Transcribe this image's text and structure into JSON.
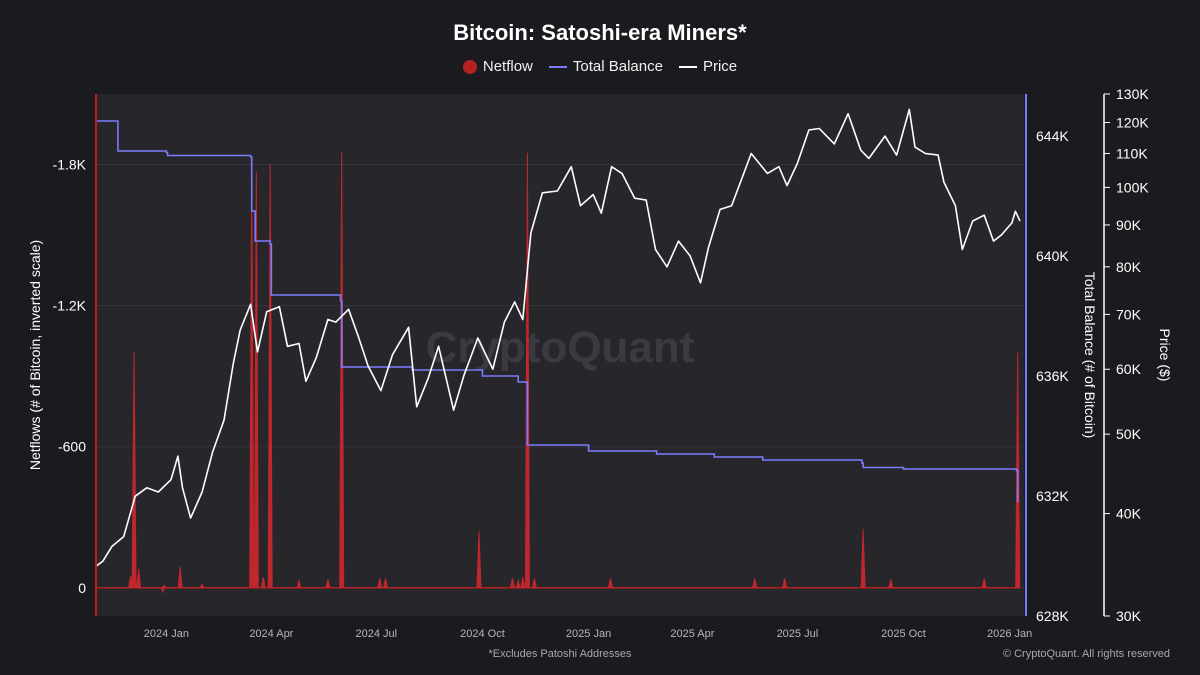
{
  "chart_data": {
    "type": "line",
    "title": "Bitcoin: Satoshi-era Miners*",
    "legend": [
      {
        "name": "Netflow",
        "color": "#b22222",
        "marker": "circle"
      },
      {
        "name": "Total Balance",
        "color": "#7b7bff",
        "marker": "line"
      },
      {
        "name": "Price",
        "color": "#ffffff",
        "marker": "line"
      }
    ],
    "watermark": "CryptoQuant",
    "footnote": "*Excludes Patoshi Addresses",
    "copyright": "© CryptoQuant. All rights reserved",
    "x_axis": {
      "type": "date",
      "range": [
        "2023-11-01",
        "2026-01-10"
      ],
      "ticks": [
        {
          "date": "2024-01-01",
          "label": "2024 Jan"
        },
        {
          "date": "2024-04-01",
          "label": "2024 Apr"
        },
        {
          "date": "2024-07-01",
          "label": "2024 Jul"
        },
        {
          "date": "2024-10-01",
          "label": "2024 Oct"
        },
        {
          "date": "2025-01-01",
          "label": "2025 Jan"
        },
        {
          "date": "2025-04-01",
          "label": "2025 Apr"
        },
        {
          "date": "2025-07-01",
          "label": "2025 Jul"
        },
        {
          "date": "2025-10-01",
          "label": "2025 Oct"
        },
        {
          "date": "2026-01-01",
          "label": "2026 Jan"
        }
      ]
    },
    "y_left": {
      "label": "Netflows (# of Bitcoin, inverted scale)",
      "inverted": true,
      "range": [
        -2100,
        120
      ],
      "ticks": [
        {
          "value": 0,
          "label": "0"
        },
        {
          "value": -600,
          "label": "-600"
        },
        {
          "value": -1200,
          "label": "-1.2K"
        },
        {
          "value": -1800,
          "label": "-1.8K"
        }
      ]
    },
    "y_right1": {
      "label": "Total Balance (# of Bitcoin)",
      "range": [
        628000,
        645400
      ],
      "ticks": [
        {
          "value": 628000,
          "label": "628K"
        },
        {
          "value": 632000,
          "label": "632K"
        },
        {
          "value": 636000,
          "label": "636K"
        },
        {
          "value": 640000,
          "label": "640K"
        },
        {
          "value": 644000,
          "label": "644K"
        }
      ]
    },
    "y_right2": {
      "label": "Price ($)",
      "scale": "log",
      "range": [
        30000,
        130000
      ],
      "ticks": [
        {
          "value": 30000,
          "label": "30K"
        },
        {
          "value": 40000,
          "label": "40K"
        },
        {
          "value": 50000,
          "label": "50K"
        },
        {
          "value": 60000,
          "label": "60K"
        },
        {
          "value": 70000,
          "label": "70K"
        },
        {
          "value": 80000,
          "label": "80K"
        },
        {
          "value": 90000,
          "label": "90K"
        },
        {
          "value": 100000,
          "label": "100K"
        },
        {
          "value": 110000,
          "label": "110K"
        },
        {
          "value": 120000,
          "label": "120K"
        },
        {
          "value": 130000,
          "label": "130K"
        }
      ]
    },
    "series": [
      {
        "name": "Netflow",
        "points": [
          [
            "2023-12-01",
            -50
          ],
          [
            "2023-12-04",
            -1000
          ],
          [
            "2023-12-08",
            -80
          ],
          [
            "2023-12-30",
            -10
          ],
          [
            "2024-01-13",
            -90
          ],
          [
            "2024-02-01",
            -15
          ],
          [
            "2024-03-15",
            -1800
          ],
          [
            "2024-03-19",
            -1770
          ],
          [
            "2024-03-25",
            -45
          ],
          [
            "2024-03-31",
            -1800
          ],
          [
            "2024-04-25",
            -30
          ],
          [
            "2024-05-20",
            -35
          ],
          [
            "2024-06-01",
            -1850
          ],
          [
            "2024-07-04",
            -40
          ],
          [
            "2024-07-09",
            -40
          ],
          [
            "2024-09-28",
            -240
          ],
          [
            "2024-10-27",
            -40
          ],
          [
            "2024-11-01",
            -30
          ],
          [
            "2024-11-05",
            -45
          ],
          [
            "2024-11-09",
            -1850
          ],
          [
            "2024-11-15",
            -40
          ],
          [
            "2025-01-20",
            -40
          ],
          [
            "2025-05-25",
            -40
          ],
          [
            "2025-06-20",
            -40
          ],
          [
            "2025-08-27",
            -250
          ],
          [
            "2025-09-20",
            -35
          ],
          [
            "2025-12-10",
            -40
          ],
          [
            "2026-01-08",
            -1000
          ]
        ],
        "negative_dips": [
          [
            "2023-12-29",
            25
          ]
        ]
      },
      {
        "name": "Total Balance",
        "points": [
          [
            "2023-11-01",
            644500
          ],
          [
            "2023-11-18",
            644500
          ],
          [
            "2023-11-20",
            643500
          ],
          [
            "2024-01-01",
            643450
          ],
          [
            "2024-01-02",
            643350
          ],
          [
            "2024-03-14",
            643300
          ],
          [
            "2024-03-15",
            641500
          ],
          [
            "2024-03-18",
            640500
          ],
          [
            "2024-03-31",
            640400
          ],
          [
            "2024-04-01",
            638700
          ],
          [
            "2024-05-31",
            638500
          ],
          [
            "2024-06-01",
            636300
          ],
          [
            "2024-08-01",
            636200
          ],
          [
            "2024-10-01",
            636000
          ],
          [
            "2024-11-01",
            635800
          ],
          [
            "2024-11-09",
            633700
          ],
          [
            "2025-01-01",
            633500
          ],
          [
            "2025-03-01",
            633400
          ],
          [
            "2025-04-20",
            633300
          ],
          [
            "2025-06-01",
            633200
          ],
          [
            "2025-08-26",
            633100
          ],
          [
            "2025-08-27",
            632950
          ],
          [
            "2025-10-01",
            632900
          ],
          [
            "2025-12-01",
            632900
          ],
          [
            "2026-01-07",
            632850
          ],
          [
            "2026-01-08",
            631800
          ]
        ]
      },
      {
        "name": "Price",
        "points": [
          [
            "2023-11-01",
            34500
          ],
          [
            "2023-11-07",
            35000
          ],
          [
            "2023-11-15",
            36500
          ],
          [
            "2023-11-25",
            37500
          ],
          [
            "2023-12-05",
            42000
          ],
          [
            "2023-12-15",
            43000
          ],
          [
            "2023-12-25",
            42500
          ],
          [
            "2024-01-05",
            44000
          ],
          [
            "2024-01-11",
            47000
          ],
          [
            "2024-01-15",
            43000
          ],
          [
            "2024-01-22",
            39500
          ],
          [
            "2024-02-01",
            42500
          ],
          [
            "2024-02-10",
            47500
          ],
          [
            "2024-02-20",
            52000
          ],
          [
            "2024-02-28",
            61000
          ],
          [
            "2024-03-05",
            67000
          ],
          [
            "2024-03-14",
            72000
          ],
          [
            "2024-03-20",
            63000
          ],
          [
            "2024-03-28",
            70500
          ],
          [
            "2024-04-08",
            71500
          ],
          [
            "2024-04-15",
            64000
          ],
          [
            "2024-04-25",
            64500
          ],
          [
            "2024-05-01",
            58000
          ],
          [
            "2024-05-10",
            62000
          ],
          [
            "2024-05-20",
            69000
          ],
          [
            "2024-05-27",
            68500
          ],
          [
            "2024-06-07",
            71000
          ],
          [
            "2024-06-15",
            66000
          ],
          [
            "2024-06-24",
            60500
          ],
          [
            "2024-07-05",
            56500
          ],
          [
            "2024-07-15",
            62500
          ],
          [
            "2024-07-29",
            67500
          ],
          [
            "2024-08-05",
            54000
          ],
          [
            "2024-08-15",
            58500
          ],
          [
            "2024-08-24",
            64000
          ],
          [
            "2024-09-06",
            53500
          ],
          [
            "2024-09-15",
            59000
          ],
          [
            "2024-09-27",
            65500
          ],
          [
            "2024-10-10",
            60000
          ],
          [
            "2024-10-20",
            68500
          ],
          [
            "2024-10-29",
            72500
          ],
          [
            "2024-11-05",
            69000
          ],
          [
            "2024-11-12",
            88000
          ],
          [
            "2024-11-22",
            98500
          ],
          [
            "2024-12-05",
            99000
          ],
          [
            "2024-12-17",
            106000
          ],
          [
            "2024-12-25",
            95000
          ],
          [
            "2025-01-05",
            98000
          ],
          [
            "2025-01-12",
            93000
          ],
          [
            "2025-01-21",
            106000
          ],
          [
            "2025-01-30",
            104000
          ],
          [
            "2025-02-10",
            97000
          ],
          [
            "2025-02-20",
            96500
          ],
          [
            "2025-02-28",
            84000
          ],
          [
            "2025-03-10",
            80000
          ],
          [
            "2025-03-20",
            86000
          ],
          [
            "2025-03-30",
            82500
          ],
          [
            "2025-04-08",
            76500
          ],
          [
            "2025-04-15",
            84500
          ],
          [
            "2025-04-25",
            94000
          ],
          [
            "2025-05-05",
            95000
          ],
          [
            "2025-05-15",
            103500
          ],
          [
            "2025-05-22",
            110000
          ],
          [
            "2025-06-05",
            104000
          ],
          [
            "2025-06-15",
            106000
          ],
          [
            "2025-06-22",
            100500
          ],
          [
            "2025-07-01",
            107000
          ],
          [
            "2025-07-11",
            117500
          ],
          [
            "2025-07-20",
            118000
          ],
          [
            "2025-08-02",
            113000
          ],
          [
            "2025-08-14",
            123000
          ],
          [
            "2025-08-25",
            111000
          ],
          [
            "2025-09-01",
            108500
          ],
          [
            "2025-09-15",
            115500
          ],
          [
            "2025-09-25",
            109500
          ],
          [
            "2025-10-06",
            124500
          ],
          [
            "2025-10-11",
            112000
          ],
          [
            "2025-10-20",
            110000
          ],
          [
            "2025-10-31",
            109500
          ],
          [
            "2025-11-05",
            101500
          ],
          [
            "2025-11-15",
            95000
          ],
          [
            "2025-11-21",
            84000
          ],
          [
            "2025-11-30",
            91000
          ],
          [
            "2025-12-10",
            92500
          ],
          [
            "2025-12-18",
            86000
          ],
          [
            "2025-12-25",
            87500
          ],
          [
            "2026-01-03",
            90500
          ],
          [
            "2026-01-06",
            93500
          ],
          [
            "2026-01-10",
            91000
          ]
        ]
      }
    ]
  }
}
